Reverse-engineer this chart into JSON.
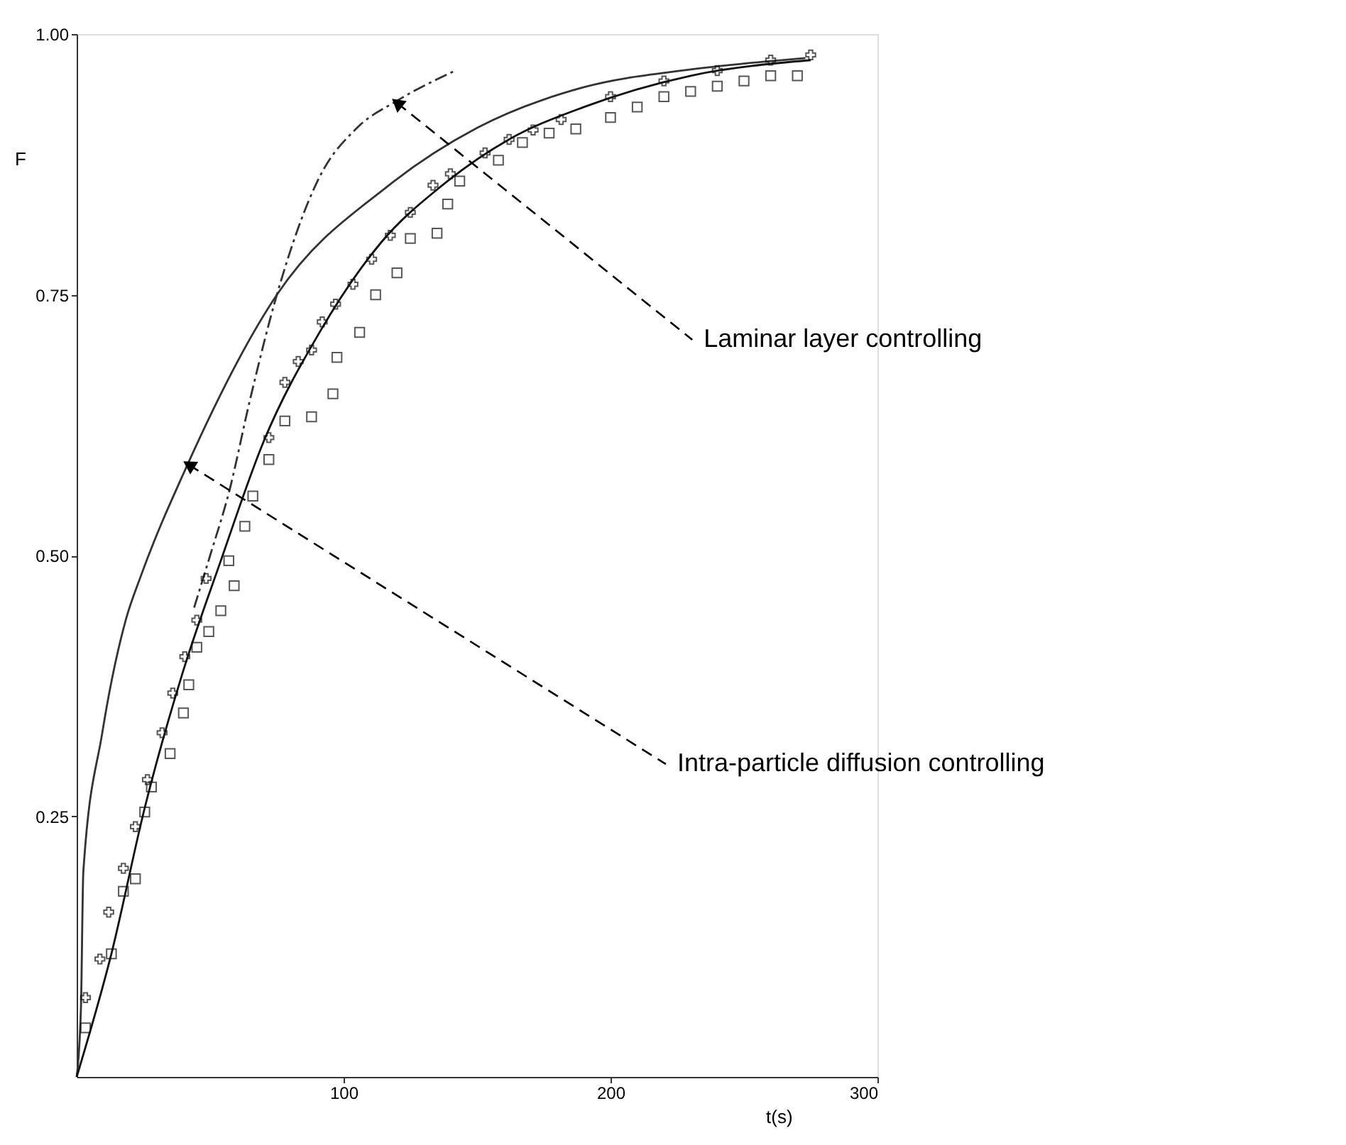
{
  "chart_data": {
    "type": "line",
    "xlabel": "t(s)",
    "ylabel": "F",
    "xlim": [
      0,
      300
    ],
    "xticks": [
      100,
      200,
      300
    ],
    "ylim": [
      0,
      1
    ],
    "yticks": [
      {
        "value": 0.25,
        "label": "0.25"
      },
      {
        "value": 0.5,
        "label": "0.50"
      },
      {
        "value": 0.75,
        "label": "0.75"
      },
      {
        "value": 1,
        "label": "1.00"
      }
    ],
    "grid": false,
    "series": [
      {
        "color": "#333333",
        "line_style": "solid",
        "x": [
          0,
          1.6,
          2.5,
          9.6,
          18.6,
          24,
          41.5,
          75,
          117,
          150,
          190,
          230,
          273
        ],
        "values": [
          0,
          0.066,
          0.197,
          0.33,
          0.44,
          0.48,
          0.587,
          0.75,
          0.855,
          0.91,
          0.949,
          0.966,
          0.977
        ]
      },
      {
        "color": "#333333",
        "line_style": "dashed",
        "x": [
          44,
          50,
          57,
          65,
          75,
          91,
          105,
          120,
          141
        ],
        "values": [
          0.45,
          0.5,
          0.56,
          0.65,
          0.75,
          0.863,
          0.91,
          0.936,
          0.964
        ]
      },
      {
        "color": "#111111",
        "line_style": "solid",
        "x": [
          0,
          13,
          25.5,
          40,
          54,
          70,
          91,
          114,
          137,
          162,
          190,
          230,
          275
        ],
        "values": [
          0,
          0.118,
          0.258,
          0.39,
          0.495,
          0.609,
          0.714,
          0.8,
          0.855,
          0.899,
          0.93,
          0.96,
          0.975
        ]
      },
      {
        "type": "scatter",
        "color": "#111111",
        "marker": "cross",
        "x": [
          3.3,
          8.7,
          12,
          17.5,
          22,
          26.5,
          32,
          36,
          40.5,
          45,
          48.5,
          72,
          78,
          83,
          88,
          92,
          97,
          103.5,
          110.5,
          117.5,
          125,
          133.5,
          140,
          153,
          162,
          171,
          181.5,
          200,
          220,
          240,
          260,
          275
        ],
        "values": [
          0.076,
          0.113,
          0.158,
          0.2,
          0.24,
          0.285,
          0.33,
          0.368,
          0.403,
          0.438,
          0.478,
          0.613,
          0.666,
          0.686,
          0.697,
          0.724,
          0.741,
          0.76,
          0.784,
          0.807,
          0.829,
          0.855,
          0.866,
          0.886,
          0.899,
          0.908,
          0.918,
          0.94,
          0.955,
          0.965,
          0.975,
          0.98
        ]
      },
      {
        "type": "scatter",
        "color": "#111111",
        "marker": "square",
        "x": [
          3.3,
          13,
          17.5,
          22,
          25.5,
          28,
          35,
          40,
          42,
          45,
          49.5,
          54,
          59,
          57,
          63,
          66,
          72,
          78,
          88,
          96,
          97.5,
          106,
          112,
          120,
          125,
          135,
          139,
          143.5,
          158,
          167,
          177,
          187,
          200,
          210,
          220,
          230,
          240,
          250,
          260,
          270
        ],
        "values": [
          0.047,
          0.118,
          0.178,
          0.19,
          0.254,
          0.278,
          0.31,
          0.349,
          0.376,
          0.412,
          0.427,
          0.447,
          0.471,
          0.495,
          0.528,
          0.557,
          0.592,
          0.629,
          0.633,
          0.655,
          0.69,
          0.714,
          0.75,
          0.771,
          0.804,
          0.809,
          0.837,
          0.859,
          0.879,
          0.896,
          0.905,
          0.909,
          0.92,
          0.93,
          0.94,
          0.945,
          0.95,
          0.955,
          0.96,
          0.96
        ]
      }
    ],
    "annotations": [
      {
        "text": "Laminar layer controlling",
        "x": 120,
        "y": 0.934
      },
      {
        "text": "Intra-particle diffusion controlling",
        "x": 42,
        "y": 0.587
      }
    ]
  }
}
